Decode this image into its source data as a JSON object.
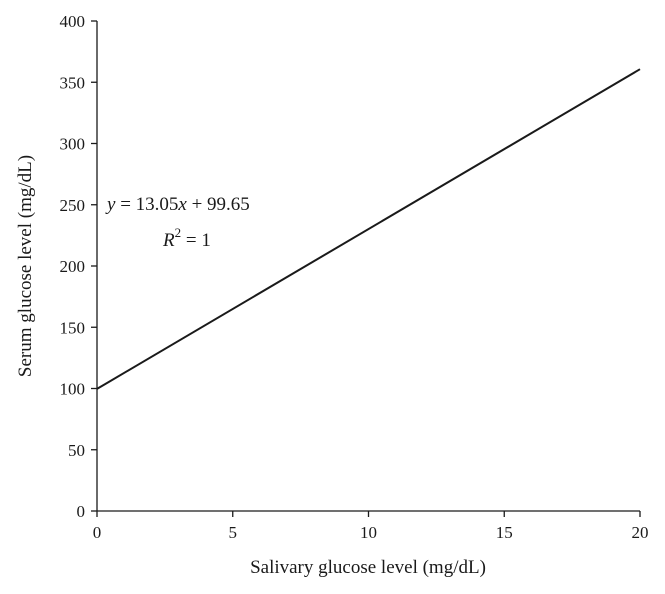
{
  "chart_data": {
    "type": "line",
    "xlabel": "Salivary glucose level (mg/dL)",
    "ylabel": "Serum glucose level (mg/dL)",
    "xlim": [
      0,
      20
    ],
    "ylim": [
      0,
      400
    ],
    "x_ticks": [
      0,
      5,
      10,
      15,
      20
    ],
    "y_ticks": [
      0,
      50,
      100,
      150,
      200,
      250,
      300,
      350,
      400
    ],
    "grid": false,
    "series": [
      {
        "x": [
          0,
          20
        ],
        "y": [
          99.65,
          360.65
        ],
        "color": "#1a1a1a"
      }
    ],
    "annotation": {
      "equation": {
        "y_var": "y",
        "eq_middle": " = 13.05",
        "x_var": "x",
        "eq_end": " + 99.65"
      },
      "r_squared": {
        "r_var": "R",
        "sup": "2",
        "eq": " = 1"
      }
    }
  }
}
